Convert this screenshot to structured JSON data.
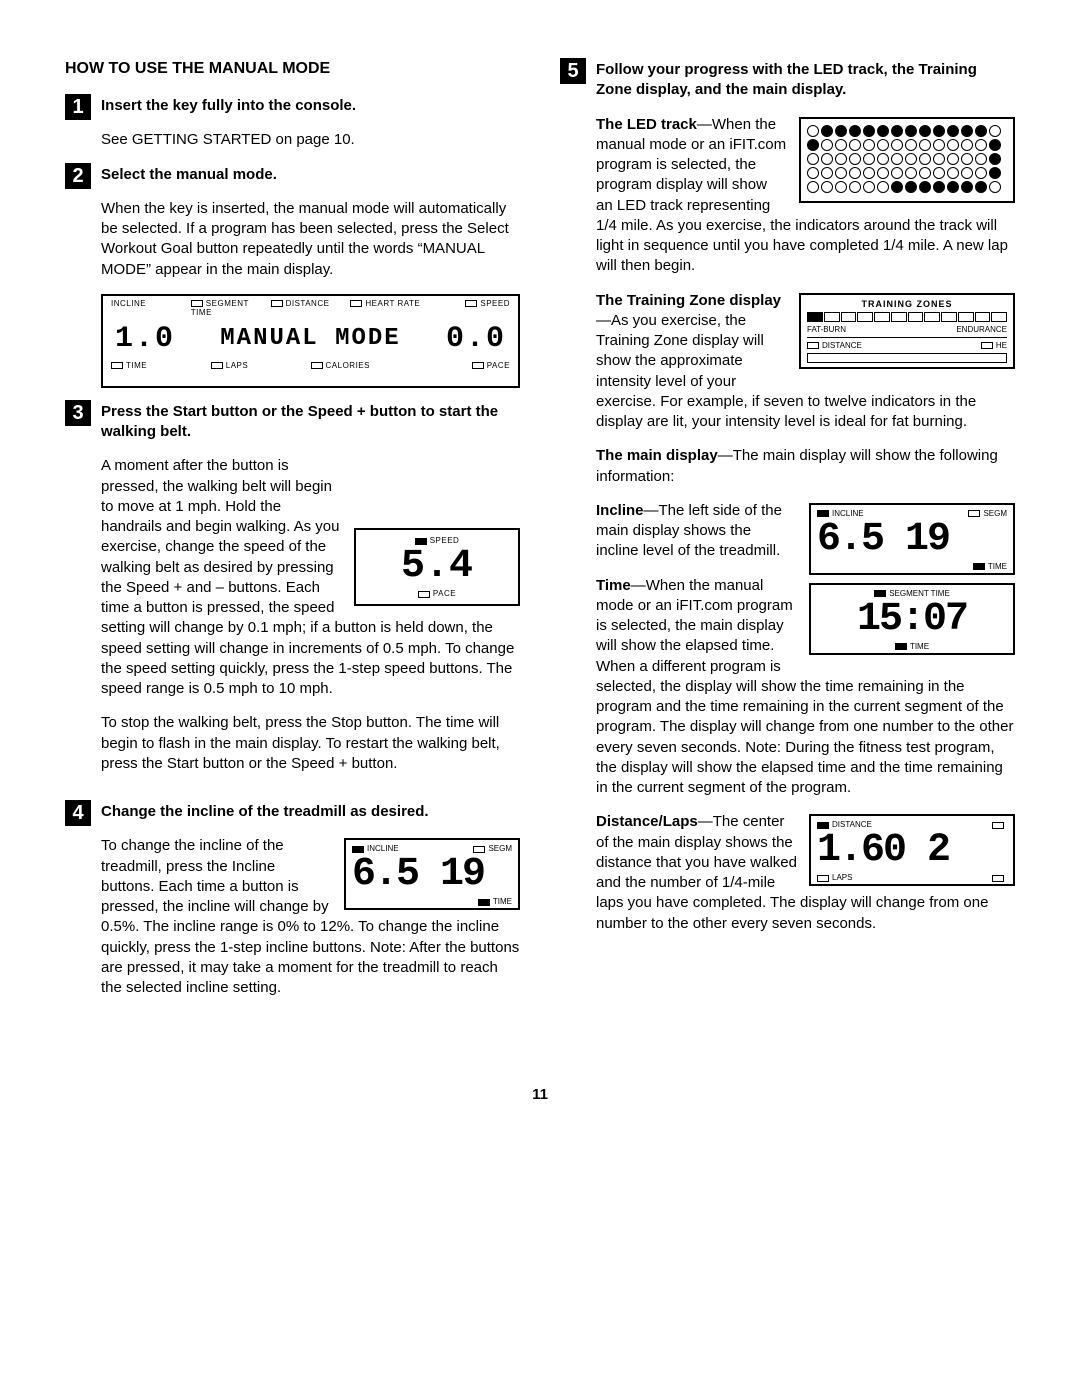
{
  "page_number": "11",
  "left": {
    "heading": "HOW TO USE THE MANUAL MODE",
    "steps": [
      {
        "num": "1",
        "title": "Insert the key fully into the console.",
        "para1": "See GETTING STARTED on page 10."
      },
      {
        "num": "2",
        "title": "Select the manual mode.",
        "para1": "When the key is inserted, the manual mode will automatically be selected. If a program has been selected, press the Select Workout Goal button repeatedly until the words “MANUAL MODE” appear in the main display.",
        "lcd": {
          "top_labels": [
            "INCLINE",
            "SEGMENT TIME",
            "DISTANCE",
            "HEART RATE",
            "SPEED"
          ],
          "main_left": "1.0",
          "main_center": "MANUAL  MODE",
          "main_right": "0.0",
          "bot_labels": [
            "TIME",
            "LAPS",
            "CALORIES",
            "PACE"
          ]
        }
      },
      {
        "num": "3",
        "title": "Press the Start button or the Speed + button to start the walking belt.",
        "para1": "A moment after the button is pressed, the walking belt will begin to move at 1 mph. Hold the handrails and begin walking. As you exercise, change the speed of the walking belt as desired by pressing the Speed + and – buttons. Each time a button is pressed, the speed setting will change by 0.1 mph; if a button is held down, the speed setting will change in increments of 0.5 mph. To change the speed setting quickly, press the 1-step speed buttons. The speed range is 0.5 mph to 10 mph.",
        "speed_fig": {
          "top": "SPEED",
          "val": "5.4",
          "bot": "PACE"
        },
        "para2": "To stop the walking belt, press the Stop button. The time will begin to flash in the main display. To restart the walking belt, press the Start button or the Speed + button."
      },
      {
        "num": "4",
        "title": "Change the incline of the treadmill as desired.",
        "para1": "To change the incline of the treadmill, press the Incline buttons. Each time a button is pressed, the incline will change by 0.5%. The incline range is 0% to 12%. To change the incline quickly, press the 1-step incline buttons. Note: After the buttons are pressed, it may take a moment for the treadmill to reach the selected incline setting.",
        "incline_fig": {
          "top_l": "INCLINE",
          "top_r": "SEGM",
          "val": "6.5  19",
          "bot": "TIME"
        }
      }
    ]
  },
  "right": {
    "step5": {
      "num": "5",
      "title": "Follow your progress with the LED track, the Training Zone display, and the main display.",
      "led_led": "The LED track",
      "led_para": "—When the manual mode or an iFIT.com program is selected, the program display will show an LED track representing 1/4 mile. As you exercise, the indicators around the track will light in sequence until you have completed 1/4 mile. A new lap will then begin.",
      "led_pattern": [
        [
          0,
          1,
          1,
          1,
          1,
          1,
          1,
          1,
          1,
          1,
          1,
          1,
          1,
          0
        ],
        [
          1,
          0,
          0,
          0,
          0,
          0,
          0,
          0,
          0,
          0,
          0,
          0,
          0,
          1
        ],
        [
          0,
          0,
          0,
          0,
          0,
          0,
          0,
          0,
          0,
          0,
          0,
          0,
          0,
          1
        ],
        [
          0,
          0,
          0,
          0,
          0,
          0,
          0,
          0,
          0,
          0,
          0,
          0,
          0,
          1
        ],
        [
          0,
          0,
          0,
          0,
          0,
          0,
          1,
          1,
          1,
          1,
          1,
          1,
          1,
          0
        ]
      ],
      "tz_lead": "The Training Zone display",
      "tz_para": "—As you exercise, the Training Zone display will show the approximate intensity level of your exercise. For example, if seven to twelve indicators in the display are lit, your intensity level is ideal for fat burning.",
      "tz_fig": {
        "title": "TRAINING ZONES",
        "left": "FAT-BURN",
        "right": "ENDURANCE",
        "bot_l": "DISTANCE",
        "bot_r": "HE"
      },
      "main_lead": "The main display",
      "main_para": "—The main display will show the following information:",
      "incline_lead": "Incline",
      "incline_para": "—The left side of the main display shows the incline level of the treadmill.",
      "incline_fig": {
        "top_l": "INCLINE",
        "top_r": "SEGM",
        "val": "6.5  19",
        "bot": "TIME"
      },
      "time_lead": "Time",
      "time_para": "—When the manual mode or an iFIT.com program is selected, the main display will show the elapsed time. When a different program is selected, the display will show the time remaining in the program and the time remaining in the current segment of the program. The display will change from one number to the other every seven seconds. Note: During the fitness test program, the display will show the elapsed time and the time remaining in the current segment of the program.",
      "time_fig": {
        "top": "SEGMENT TIME",
        "val": "15:07",
        "bot": "TIME"
      },
      "dist_lead": "Distance/Laps",
      "dist_para": "—The center of the main display shows the distance that you have walked and the number of 1/4-mile laps you have completed. The display will change from one number to the other every seven seconds.",
      "dist_fig": {
        "top": "DISTANCE",
        "val": "1.60  2",
        "bot": "LAPS"
      }
    }
  }
}
